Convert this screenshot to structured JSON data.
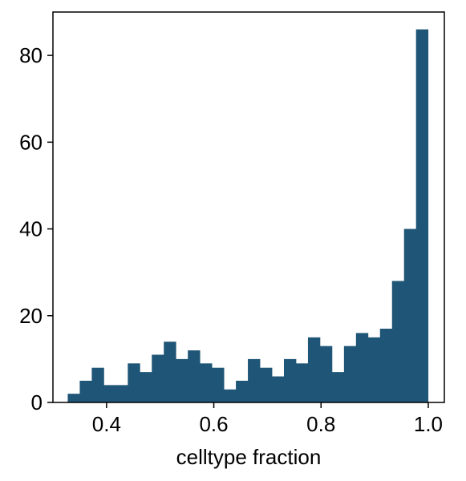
{
  "chart_data": {
    "type": "bar",
    "subtype": "histogram",
    "bar_color": "#1f5576",
    "xlabel": "celltype fraction",
    "ylabel": "",
    "title": "",
    "xlim": [
      0.3,
      1.03
    ],
    "ylim": [
      0,
      90
    ],
    "grid": false,
    "xticks": [
      0.4,
      0.6,
      0.8,
      1.0
    ],
    "xtick_labels": [
      "0.4",
      "0.6",
      "0.8",
      "1.0"
    ],
    "yticks": [
      0,
      20,
      40,
      60,
      80
    ],
    "ytick_labels": [
      "0",
      "20",
      "40",
      "60",
      "80"
    ],
    "bins": [
      {
        "x0": 0.3276,
        "x1": 0.35,
        "count": 2
      },
      {
        "x0": 0.35,
        "x1": 0.3724,
        "count": 5
      },
      {
        "x0": 0.3724,
        "x1": 0.3948,
        "count": 8
      },
      {
        "x0": 0.3948,
        "x1": 0.4172,
        "count": 4
      },
      {
        "x0": 0.4172,
        "x1": 0.4396,
        "count": 4
      },
      {
        "x0": 0.4396,
        "x1": 0.462,
        "count": 9
      },
      {
        "x0": 0.462,
        "x1": 0.4844,
        "count": 7
      },
      {
        "x0": 0.4844,
        "x1": 0.5068,
        "count": 11
      },
      {
        "x0": 0.5068,
        "x1": 0.5292,
        "count": 14
      },
      {
        "x0": 0.5292,
        "x1": 0.5516,
        "count": 10
      },
      {
        "x0": 0.5516,
        "x1": 0.574,
        "count": 12
      },
      {
        "x0": 0.574,
        "x1": 0.5964,
        "count": 9
      },
      {
        "x0": 0.5964,
        "x1": 0.6188,
        "count": 8
      },
      {
        "x0": 0.6188,
        "x1": 0.6412,
        "count": 3
      },
      {
        "x0": 0.6412,
        "x1": 0.6636,
        "count": 5
      },
      {
        "x0": 0.6636,
        "x1": 0.686,
        "count": 10
      },
      {
        "x0": 0.686,
        "x1": 0.7084,
        "count": 8
      },
      {
        "x0": 0.7084,
        "x1": 0.7308,
        "count": 6
      },
      {
        "x0": 0.7308,
        "x1": 0.7532,
        "count": 10
      },
      {
        "x0": 0.7532,
        "x1": 0.7756,
        "count": 9
      },
      {
        "x0": 0.7756,
        "x1": 0.798,
        "count": 15
      },
      {
        "x0": 0.798,
        "x1": 0.8204,
        "count": 13
      },
      {
        "x0": 0.8204,
        "x1": 0.8428,
        "count": 7
      },
      {
        "x0": 0.8428,
        "x1": 0.8652,
        "count": 13
      },
      {
        "x0": 0.8652,
        "x1": 0.8876,
        "count": 16
      },
      {
        "x0": 0.8876,
        "x1": 0.91,
        "count": 15
      },
      {
        "x0": 0.91,
        "x1": 0.9324,
        "count": 17
      },
      {
        "x0": 0.9324,
        "x1": 0.9548,
        "count": 28
      },
      {
        "x0": 0.9548,
        "x1": 0.9772,
        "count": 40
      },
      {
        "x0": 0.9772,
        "x1": 0.9996,
        "count": 86
      }
    ]
  }
}
